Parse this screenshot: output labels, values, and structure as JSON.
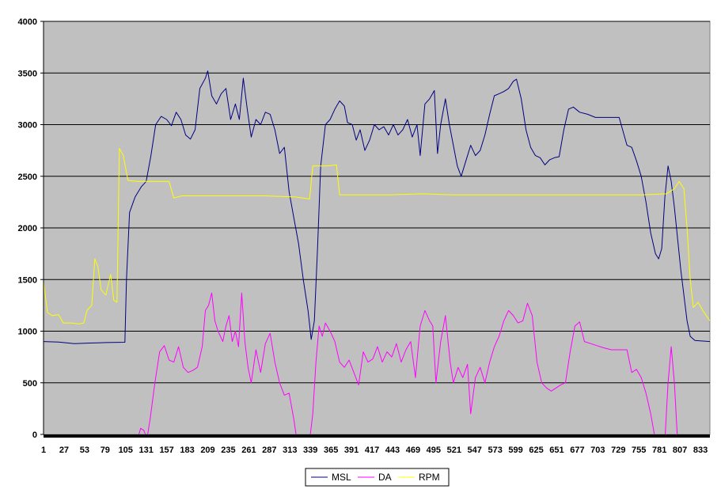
{
  "chart_data": {
    "type": "line",
    "title": "",
    "xlabel": "",
    "ylabel": "",
    "ylim": [
      0,
      4000
    ],
    "xlim": [
      1,
      845
    ],
    "y_ticks": [
      "0",
      "500",
      "1000",
      "1500",
      "2000",
      "2500",
      "3000",
      "3500",
      "4000"
    ],
    "x_ticks": [
      "1",
      "27",
      "53",
      "79",
      "105",
      "131",
      "157",
      "183",
      "209",
      "235",
      "261",
      "287",
      "313",
      "339",
      "365",
      "391",
      "417",
      "443",
      "469",
      "495",
      "521",
      "547",
      "573",
      "599",
      "625",
      "651",
      "677",
      "703",
      "729",
      "755",
      "781",
      "807",
      "833"
    ],
    "grid": true,
    "plot_background": "#c0c0c0",
    "legend_position": "bottom",
    "series": [
      {
        "name": "MSL",
        "color": "#000080",
        "points": [
          [
            1,
            900
          ],
          [
            20,
            895
          ],
          [
            40,
            880
          ],
          [
            60,
            885
          ],
          [
            80,
            890
          ],
          [
            104,
            893
          ],
          [
            106,
            1500
          ],
          [
            110,
            2150
          ],
          [
            117,
            2300
          ],
          [
            125,
            2400
          ],
          [
            131,
            2450
          ],
          [
            137,
            2700
          ],
          [
            143,
            3000
          ],
          [
            150,
            3080
          ],
          [
            157,
            3050
          ],
          [
            163,
            2990
          ],
          [
            169,
            3120
          ],
          [
            175,
            3050
          ],
          [
            181,
            2900
          ],
          [
            187,
            2860
          ],
          [
            193,
            2950
          ],
          [
            199,
            3350
          ],
          [
            206,
            3450
          ],
          [
            209,
            3520
          ],
          [
            214,
            3280
          ],
          [
            220,
            3200
          ],
          [
            226,
            3300
          ],
          [
            232,
            3350
          ],
          [
            238,
            3050
          ],
          [
            244,
            3200
          ],
          [
            249,
            3050
          ],
          [
            254,
            3450
          ],
          [
            259,
            3150
          ],
          [
            264,
            2880
          ],
          [
            270,
            3050
          ],
          [
            276,
            3000
          ],
          [
            282,
            3120
          ],
          [
            288,
            3100
          ],
          [
            294,
            2950
          ],
          [
            300,
            2720
          ],
          [
            306,
            2780
          ],
          [
            312,
            2350
          ],
          [
            318,
            2100
          ],
          [
            324,
            1850
          ],
          [
            330,
            1500
          ],
          [
            336,
            1200
          ],
          [
            340,
            920
          ],
          [
            344,
            1100
          ],
          [
            348,
            1800
          ],
          [
            352,
            2600
          ],
          [
            358,
            3000
          ],
          [
            364,
            3050
          ],
          [
            370,
            3150
          ],
          [
            376,
            3230
          ],
          [
            382,
            3180
          ],
          [
            386,
            3020
          ],
          [
            392,
            3000
          ],
          [
            397,
            2850
          ],
          [
            402,
            2950
          ],
          [
            408,
            2750
          ],
          [
            414,
            2850
          ],
          [
            420,
            3000
          ],
          [
            426,
            2950
          ],
          [
            432,
            2980
          ],
          [
            438,
            2900
          ],
          [
            444,
            3000
          ],
          [
            450,
            2900
          ],
          [
            456,
            2950
          ],
          [
            462,
            3050
          ],
          [
            468,
            2880
          ],
          [
            474,
            3000
          ],
          [
            478,
            2700
          ],
          [
            484,
            3200
          ],
          [
            490,
            3250
          ],
          [
            496,
            3330
          ],
          [
            500,
            2720
          ],
          [
            504,
            3000
          ],
          [
            510,
            3250
          ],
          [
            515,
            3000
          ],
          [
            520,
            2800
          ],
          [
            525,
            2600
          ],
          [
            530,
            2500
          ],
          [
            536,
            2650
          ],
          [
            542,
            2800
          ],
          [
            548,
            2700
          ],
          [
            554,
            2750
          ],
          [
            560,
            2900
          ],
          [
            566,
            3100
          ],
          [
            572,
            3280
          ],
          [
            578,
            3300
          ],
          [
            584,
            3320
          ],
          [
            590,
            3350
          ],
          [
            596,
            3420
          ],
          [
            600,
            3440
          ],
          [
            606,
            3250
          ],
          [
            612,
            2950
          ],
          [
            618,
            2780
          ],
          [
            624,
            2700
          ],
          [
            630,
            2680
          ],
          [
            636,
            2610
          ],
          [
            642,
            2660
          ],
          [
            648,
            2680
          ],
          [
            654,
            2690
          ],
          [
            660,
            2950
          ],
          [
            666,
            3150
          ],
          [
            672,
            3170
          ],
          [
            680,
            3120
          ],
          [
            690,
            3100
          ],
          [
            700,
            3070
          ],
          [
            710,
            3070
          ],
          [
            720,
            3070
          ],
          [
            730,
            3070
          ],
          [
            740,
            2800
          ],
          [
            746,
            2780
          ],
          [
            752,
            2650
          ],
          [
            758,
            2500
          ],
          [
            764,
            2250
          ],
          [
            770,
            1950
          ],
          [
            776,
            1750
          ],
          [
            780,
            1700
          ],
          [
            784,
            1800
          ],
          [
            788,
            2300
          ],
          [
            792,
            2600
          ],
          [
            796,
            2450
          ],
          [
            800,
            2200
          ],
          [
            804,
            1900
          ],
          [
            808,
            1600
          ],
          [
            812,
            1350
          ],
          [
            816,
            1100
          ],
          [
            820,
            950
          ],
          [
            826,
            910
          ],
          [
            845,
            900
          ]
        ]
      },
      {
        "name": "DA",
        "color": "#ff00ff",
        "points": [
          [
            120,
            -50
          ],
          [
            124,
            60
          ],
          [
            128,
            40
          ],
          [
            132,
            -40
          ],
          [
            136,
            150
          ],
          [
            142,
            500
          ],
          [
            148,
            800
          ],
          [
            154,
            860
          ],
          [
            160,
            720
          ],
          [
            166,
            700
          ],
          [
            172,
            850
          ],
          [
            178,
            650
          ],
          [
            184,
            600
          ],
          [
            190,
            620
          ],
          [
            196,
            650
          ],
          [
            202,
            850
          ],
          [
            206,
            1200
          ],
          [
            210,
            1250
          ],
          [
            214,
            1370
          ],
          [
            218,
            1100
          ],
          [
            222,
            1000
          ],
          [
            228,
            900
          ],
          [
            232,
            1050
          ],
          [
            236,
            1150
          ],
          [
            240,
            900
          ],
          [
            244,
            1000
          ],
          [
            248,
            850
          ],
          [
            252,
            1370
          ],
          [
            256,
            900
          ],
          [
            260,
            650
          ],
          [
            264,
            500
          ],
          [
            270,
            820
          ],
          [
            276,
            600
          ],
          [
            282,
            880
          ],
          [
            288,
            980
          ],
          [
            294,
            700
          ],
          [
            300,
            500
          ],
          [
            306,
            380
          ],
          [
            312,
            400
          ],
          [
            318,
            150
          ],
          [
            322,
            -60
          ],
          [
            338,
            -60
          ],
          [
            342,
            200
          ],
          [
            346,
            700
          ],
          [
            350,
            1050
          ],
          [
            354,
            950
          ],
          [
            358,
            1080
          ],
          [
            364,
            1000
          ],
          [
            370,
            900
          ],
          [
            376,
            700
          ],
          [
            382,
            650
          ],
          [
            388,
            720
          ],
          [
            394,
            600
          ],
          [
            400,
            480
          ],
          [
            406,
            800
          ],
          [
            412,
            700
          ],
          [
            418,
            730
          ],
          [
            424,
            850
          ],
          [
            430,
            700
          ],
          [
            436,
            800
          ],
          [
            442,
            750
          ],
          [
            448,
            880
          ],
          [
            454,
            700
          ],
          [
            460,
            820
          ],
          [
            466,
            900
          ],
          [
            472,
            550
          ],
          [
            478,
            1050
          ],
          [
            484,
            1200
          ],
          [
            490,
            1100
          ],
          [
            494,
            1050
          ],
          [
            498,
            500
          ],
          [
            504,
            900
          ],
          [
            510,
            1150
          ],
          [
            516,
            700
          ],
          [
            520,
            500
          ],
          [
            526,
            650
          ],
          [
            532,
            550
          ],
          [
            538,
            680
          ],
          [
            542,
            200
          ],
          [
            548,
            550
          ],
          [
            554,
            650
          ],
          [
            560,
            500
          ],
          [
            566,
            700
          ],
          [
            572,
            850
          ],
          [
            578,
            950
          ],
          [
            584,
            1100
          ],
          [
            590,
            1200
          ],
          [
            596,
            1150
          ],
          [
            602,
            1080
          ],
          [
            608,
            1100
          ],
          [
            614,
            1270
          ],
          [
            620,
            1150
          ],
          [
            626,
            700
          ],
          [
            632,
            500
          ],
          [
            638,
            450
          ],
          [
            644,
            420
          ],
          [
            650,
            450
          ],
          [
            656,
            480
          ],
          [
            662,
            500
          ],
          [
            668,
            800
          ],
          [
            674,
            1050
          ],
          [
            680,
            1090
          ],
          [
            686,
            900
          ],
          [
            694,
            880
          ],
          [
            702,
            860
          ],
          [
            710,
            840
          ],
          [
            720,
            820
          ],
          [
            730,
            820
          ],
          [
            740,
            820
          ],
          [
            746,
            600
          ],
          [
            752,
            630
          ],
          [
            758,
            550
          ],
          [
            764,
            400
          ],
          [
            770,
            200
          ],
          [
            776,
            -60
          ],
          [
            788,
            -60
          ],
          [
            792,
            500
          ],
          [
            796,
            850
          ],
          [
            800,
            500
          ],
          [
            804,
            -60
          ]
        ]
      },
      {
        "name": "RPM",
        "color": "#ffff00",
        "points": [
          [
            1,
            1480
          ],
          [
            6,
            1180
          ],
          [
            12,
            1150
          ],
          [
            20,
            1160
          ],
          [
            26,
            1080
          ],
          [
            36,
            1080
          ],
          [
            46,
            1070
          ],
          [
            52,
            1080
          ],
          [
            56,
            1200
          ],
          [
            62,
            1250
          ],
          [
            66,
            1700
          ],
          [
            70,
            1620
          ],
          [
            74,
            1400
          ],
          [
            80,
            1350
          ],
          [
            86,
            1550
          ],
          [
            90,
            1300
          ],
          [
            94,
            1280
          ],
          [
            97,
            2770
          ],
          [
            102,
            2700
          ],
          [
            108,
            2460
          ],
          [
            120,
            2450
          ],
          [
            140,
            2450
          ],
          [
            160,
            2450
          ],
          [
            166,
            2290
          ],
          [
            176,
            2310
          ],
          [
            200,
            2310
          ],
          [
            240,
            2310
          ],
          [
            280,
            2310
          ],
          [
            320,
            2300
          ],
          [
            338,
            2280
          ],
          [
            342,
            2600
          ],
          [
            360,
            2600
          ],
          [
            372,
            2610
          ],
          [
            376,
            2320
          ],
          [
            400,
            2320
          ],
          [
            440,
            2320
          ],
          [
            480,
            2330
          ],
          [
            520,
            2320
          ],
          [
            560,
            2320
          ],
          [
            600,
            2320
          ],
          [
            640,
            2320
          ],
          [
            680,
            2320
          ],
          [
            720,
            2320
          ],
          [
            760,
            2320
          ],
          [
            790,
            2330
          ],
          [
            800,
            2380
          ],
          [
            806,
            2450
          ],
          [
            812,
            2380
          ],
          [
            816,
            2000
          ],
          [
            820,
            1500
          ],
          [
            824,
            1230
          ],
          [
            830,
            1280
          ],
          [
            836,
            1200
          ],
          [
            845,
            1100
          ]
        ]
      }
    ]
  }
}
